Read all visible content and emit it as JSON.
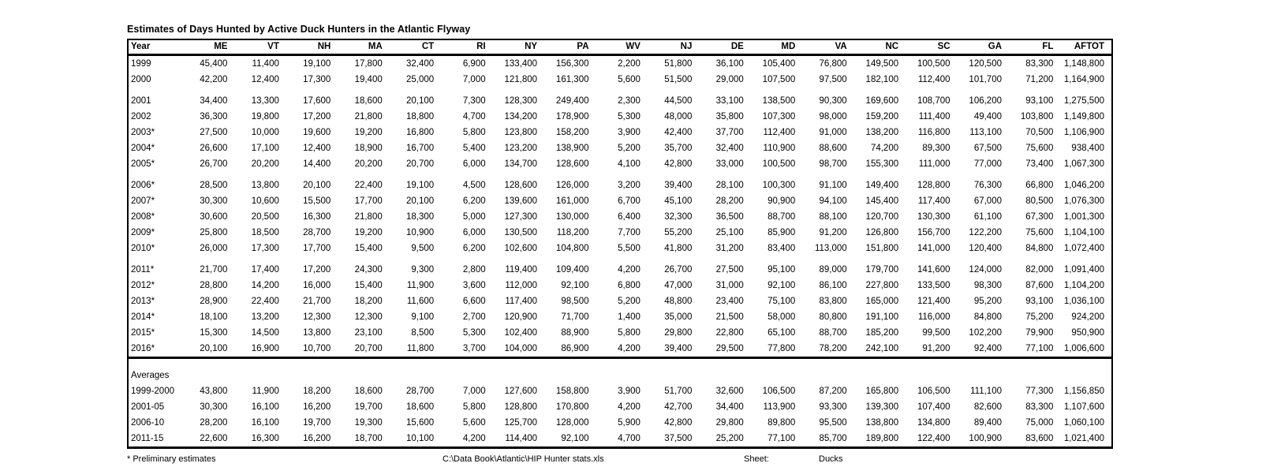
{
  "title": "Estimates of Days Hunted by Active Duck Hunters in the Atlantic Flyway",
  "table": {
    "columns": [
      "Year",
      "ME",
      "VT",
      "NH",
      "MA",
      "CT",
      "RI",
      "NY",
      "PA",
      "WV",
      "NJ",
      "DE",
      "MD",
      "VA",
      "NC",
      "SC",
      "GA",
      "FL",
      "AFTOT"
    ],
    "groups": [
      {
        "rows": [
          [
            "1999",
            "45,400",
            "11,400",
            "19,100",
            "17,800",
            "32,400",
            "6,900",
            "133,400",
            "156,300",
            "2,200",
            "51,800",
            "36,100",
            "105,400",
            "76,800",
            "149,500",
            "100,500",
            "120,500",
            "83,300",
            "1,148,800"
          ],
          [
            "2000",
            "42,200",
            "12,400",
            "17,300",
            "19,400",
            "25,000",
            "7,000",
            "121,800",
            "161,300",
            "5,600",
            "51,500",
            "29,000",
            "107,500",
            "97,500",
            "182,100",
            "112,400",
            "101,700",
            "71,200",
            "1,164,900"
          ]
        ]
      },
      {
        "rows": [
          [
            "2001",
            "34,400",
            "13,300",
            "17,600",
            "18,600",
            "20,100",
            "7,300",
            "128,300",
            "249,400",
            "2,300",
            "44,500",
            "33,100",
            "138,500",
            "90,300",
            "169,600",
            "108,700",
            "106,200",
            "93,100",
            "1,275,500"
          ],
          [
            "2002",
            "36,300",
            "19,800",
            "17,200",
            "21,800",
            "18,800",
            "4,700",
            "134,200",
            "178,900",
            "5,300",
            "48,000",
            "35,800",
            "107,300",
            "98,000",
            "159,200",
            "111,400",
            "49,400",
            "103,800",
            "1,149,800"
          ],
          [
            "2003*",
            "27,500",
            "10,000",
            "19,600",
            "19,200",
            "16,800",
            "5,800",
            "123,800",
            "158,200",
            "3,900",
            "42,400",
            "37,700",
            "112,400",
            "91,000",
            "138,200",
            "116,800",
            "113,100",
            "70,500",
            "1,106,900"
          ],
          [
            "2004*",
            "26,600",
            "17,100",
            "12,400",
            "18,900",
            "16,700",
            "5,400",
            "123,200",
            "138,900",
            "5,200",
            "35,700",
            "32,400",
            "110,900",
            "88,600",
            "74,200",
            "89,300",
            "67,500",
            "75,600",
            "938,400"
          ],
          [
            "2005*",
            "26,700",
            "20,200",
            "14,400",
            "20,200",
            "20,700",
            "6,000",
            "134,700",
            "128,600",
            "4,100",
            "42,800",
            "33,000",
            "100,500",
            "98,700",
            "155,300",
            "111,000",
            "77,000",
            "73,400",
            "1,067,300"
          ]
        ]
      },
      {
        "rows": [
          [
            "2006*",
            "28,500",
            "13,800",
            "20,100",
            "22,400",
            "19,100",
            "4,500",
            "128,600",
            "126,000",
            "3,200",
            "39,400",
            "28,100",
            "100,300",
            "91,100",
            "149,400",
            "128,800",
            "76,300",
            "66,800",
            "1,046,200"
          ],
          [
            "2007*",
            "30,300",
            "10,600",
            "15,500",
            "17,700",
            "20,100",
            "6,200",
            "139,600",
            "161,000",
            "6,700",
            "45,100",
            "28,200",
            "90,900",
            "94,100",
            "145,400",
            "117,400",
            "67,000",
            "80,500",
            "1,076,300"
          ],
          [
            "2008*",
            "30,600",
            "20,500",
            "16,300",
            "21,800",
            "18,300",
            "5,000",
            "127,300",
            "130,000",
            "6,400",
            "32,300",
            "36,500",
            "88,700",
            "88,100",
            "120,700",
            "130,300",
            "61,100",
            "67,300",
            "1,001,300"
          ],
          [
            "2009*",
            "25,800",
            "18,500",
            "28,700",
            "19,200",
            "10,900",
            "6,000",
            "130,500",
            "118,200",
            "7,700",
            "55,200",
            "25,100",
            "85,900",
            "91,200",
            "126,800",
            "156,700",
            "122,200",
            "75,600",
            "1,104,100"
          ],
          [
            "2010*",
            "26,000",
            "17,300",
            "17,700",
            "15,400",
            "9,500",
            "6,200",
            "102,600",
            "104,800",
            "5,500",
            "41,800",
            "31,200",
            "83,400",
            "113,000",
            "151,800",
            "141,000",
            "120,400",
            "84,800",
            "1,072,400"
          ]
        ]
      },
      {
        "rows": [
          [
            "2011*",
            "21,700",
            "17,400",
            "17,200",
            "24,300",
            "9,300",
            "2,800",
            "119,400",
            "109,400",
            "4,200",
            "26,700",
            "27,500",
            "95,100",
            "89,000",
            "179,700",
            "141,600",
            "124,000",
            "82,000",
            "1,091,400"
          ],
          [
            "2012*",
            "28,800",
            "14,200",
            "16,000",
            "15,400",
            "11,900",
            "3,600",
            "112,000",
            "92,100",
            "6,800",
            "47,000",
            "31,000",
            "92,100",
            "86,100",
            "227,800",
            "133,500",
            "98,300",
            "87,600",
            "1,104,200"
          ],
          [
            "2013*",
            "28,900",
            "22,400",
            "21,700",
            "18,200",
            "11,600",
            "6,600",
            "117,400",
            "98,500",
            "5,200",
            "48,800",
            "23,400",
            "75,100",
            "83,800",
            "165,000",
            "121,400",
            "95,200",
            "93,100",
            "1,036,100"
          ],
          [
            "2014*",
            "18,100",
            "13,200",
            "12,300",
            "12,300",
            "9,100",
            "2,700",
            "120,900",
            "71,700",
            "1,400",
            "35,000",
            "21,500",
            "58,000",
            "80,800",
            "191,100",
            "116,000",
            "84,800",
            "75,200",
            "924,200"
          ],
          [
            "2015*",
            "15,300",
            "14,500",
            "13,800",
            "23,100",
            "8,500",
            "5,300",
            "102,400",
            "88,900",
            "5,800",
            "29,800",
            "22,800",
            "65,100",
            "88,700",
            "185,200",
            "99,500",
            "102,200",
            "79,900",
            "950,900"
          ],
          [
            "2016*",
            "20,100",
            "16,900",
            "10,700",
            "20,700",
            "11,800",
            "3,700",
            "104,000",
            "86,900",
            "4,200",
            "39,400",
            "29,500",
            "77,800",
            "78,200",
            "242,100",
            "91,200",
            "92,400",
            "77,100",
            "1,006,600"
          ]
        ]
      }
    ],
    "averages": {
      "label": "Averages",
      "rows": [
        [
          "1999-2000",
          "43,800",
          "11,900",
          "18,200",
          "18,600",
          "28,700",
          "7,000",
          "127,600",
          "158,800",
          "3,900",
          "51,700",
          "32,600",
          "106,500",
          "87,200",
          "165,800",
          "106,500",
          "111,100",
          "77,300",
          "1,156,850"
        ],
        [
          "2001-05",
          "30,300",
          "16,100",
          "16,200",
          "19,700",
          "18,600",
          "5,800",
          "128,800",
          "170,800",
          "4,200",
          "42,700",
          "34,400",
          "113,900",
          "93,300",
          "139,300",
          "107,400",
          "82,600",
          "83,300",
          "1,107,600"
        ],
        [
          "2006-10",
          "28,200",
          "16,100",
          "19,700",
          "19,300",
          "15,600",
          "5,600",
          "125,700",
          "128,000",
          "5,900",
          "42,800",
          "29,800",
          "89,800",
          "95,500",
          "138,800",
          "134,800",
          "89,400",
          "75,000",
          "1,060,100"
        ],
        [
          "2011-15",
          "22,600",
          "16,300",
          "16,200",
          "18,700",
          "10,100",
          "4,200",
          "114,400",
          "92,100",
          "4,700",
          "37,500",
          "25,200",
          "77,100",
          "85,700",
          "189,800",
          "122,400",
          "100,900",
          "83,600",
          "1,021,400"
        ]
      ]
    }
  },
  "footer": {
    "note": "* Preliminary estimates",
    "path": "C:\\Data Book\\Atlantic\\HIP Hunter stats.xls",
    "sheet_label": "Sheet:",
    "sheet_name": "Ducks"
  }
}
